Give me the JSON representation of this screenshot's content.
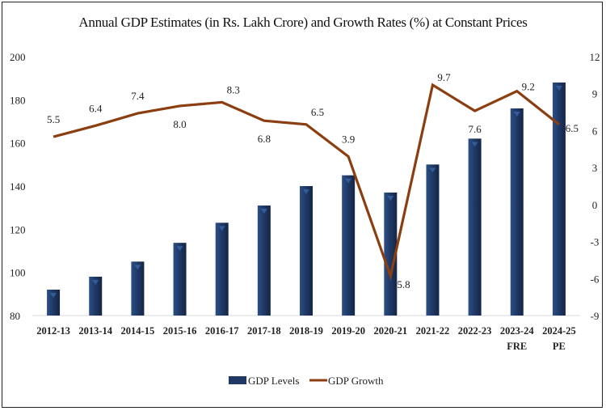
{
  "chart_data": {
    "type": "bar+line",
    "title": "Annual GDP Estimates (in Rs. Lakh Crore) and Growth Rates (%) at Constant Prices",
    "categories": [
      [
        "2012-13"
      ],
      [
        "2013-14"
      ],
      [
        "2014-15"
      ],
      [
        "2015-16"
      ],
      [
        "2016-17"
      ],
      [
        "2017-18"
      ],
      [
        "2018-19"
      ],
      [
        "2019-20"
      ],
      [
        "2020-21"
      ],
      [
        "2021-22"
      ],
      [
        "2022-23"
      ],
      [
        "2023-24",
        "FRE"
      ],
      [
        "2024-25",
        "PE"
      ]
    ],
    "series": [
      {
        "name": "GDP Levels",
        "type": "bar",
        "axis": "left",
        "color": "#1f3864",
        "values": [
          92,
          98,
          105,
          113.7,
          123,
          131,
          140,
          145,
          137,
          150,
          162,
          176,
          188
        ]
      },
      {
        "name": "GDP Growth",
        "type": "line",
        "axis": "right",
        "color": "#8b3f10",
        "values": [
          5.5,
          6.4,
          7.4,
          8.0,
          8.3,
          6.8,
          6.5,
          3.9,
          -5.8,
          9.7,
          7.6,
          9.2,
          6.5
        ],
        "labels": [
          "5.5",
          "6.4",
          "7.4",
          "8.0",
          "8.3",
          "6.8",
          "6.5",
          "3.9",
          "-5.8",
          "9.7",
          "7.6",
          "9.2",
          "6.5"
        ]
      }
    ],
    "left_axis": {
      "ylim": [
        80,
        200
      ],
      "ticks": [
        "80",
        "100",
        "120",
        "140",
        "160",
        "180",
        "200"
      ]
    },
    "right_axis": {
      "ylim": [
        -9,
        12
      ],
      "ticks": [
        "-9",
        "-6",
        "-3",
        "0",
        "3",
        "6",
        "9",
        "12"
      ]
    },
    "grid": false,
    "legend_position": "bottom"
  }
}
